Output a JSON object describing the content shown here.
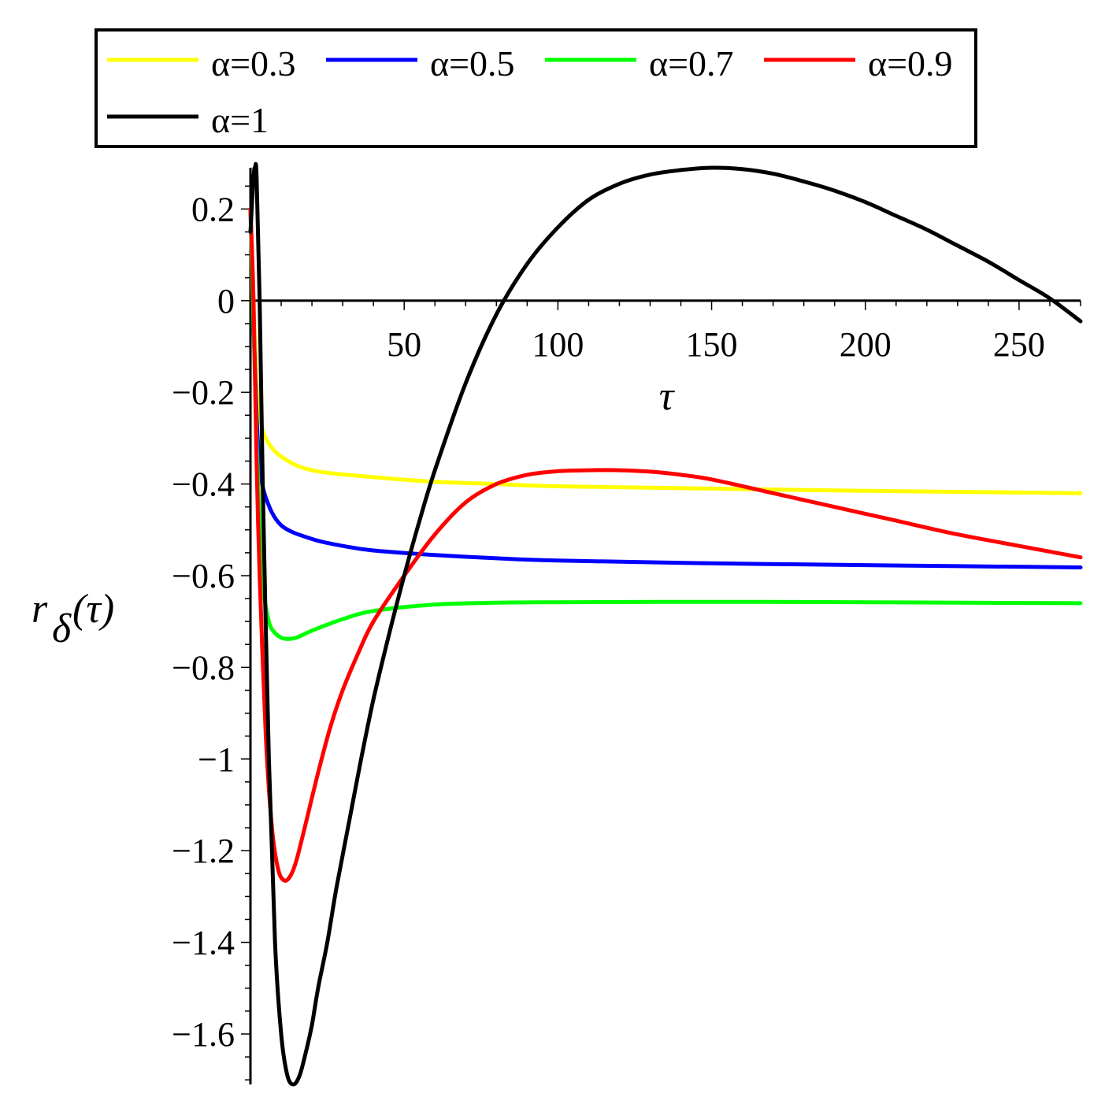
{
  "chart_data": {
    "type": "line",
    "xlabel": "τ",
    "ylabel": "r_δ(τ)",
    "ylabel_parts": {
      "main": "r",
      "sub": "δ",
      "arg": "(τ)"
    },
    "xlim": [
      0,
      270
    ],
    "ylim": [
      -1.71,
      0.29
    ],
    "x_ticks": [
      50,
      100,
      150,
      200,
      250
    ],
    "x_tick_labels": [
      "50",
      "100",
      "150",
      "200",
      "250"
    ],
    "y_ticks": [
      0.2,
      0,
      -0.2,
      -0.4,
      -0.6,
      -0.8,
      -1,
      -1.2,
      -1.4,
      -1.6
    ],
    "y_tick_labels": [
      "0.2",
      "0",
      "−0.2",
      "−0.4",
      "−0.6",
      "−0.8",
      "−1",
      "−1.2",
      "−1.4",
      "−1.6"
    ],
    "grid": false,
    "legend_placement": "top, above plot, boxed",
    "series": [
      {
        "name": "α=0.3",
        "color": "#ffff00",
        "x": [
          0,
          1,
          2,
          3,
          5,
          10,
          20,
          40,
          60,
          80,
          100,
          150,
          200,
          270
        ],
        "y": [
          0.2,
          0.0,
          -0.18,
          -0.25,
          -0.3,
          -0.34,
          -0.37,
          -0.385,
          -0.395,
          -0.4,
          -0.405,
          -0.41,
          -0.415,
          -0.42
        ]
      },
      {
        "name": "α=0.5",
        "color": "#0000ff",
        "x": [
          0,
          1,
          2,
          3,
          5,
          10,
          20,
          30,
          40,
          60,
          80,
          100,
          150,
          200,
          270
        ],
        "y": [
          0.2,
          -0.05,
          -0.25,
          -0.36,
          -0.43,
          -0.49,
          -0.52,
          -0.535,
          -0.545,
          -0.555,
          -0.562,
          -0.567,
          -0.573,
          -0.577,
          -0.582
        ]
      },
      {
        "name": "α=0.7",
        "color": "#00ff00",
        "x": [
          0,
          1,
          2,
          3,
          4,
          6,
          8,
          10,
          12,
          15,
          20,
          30,
          40,
          60,
          80,
          100,
          150,
          200,
          270
        ],
        "y": [
          0.2,
          -0.05,
          -0.3,
          -0.5,
          -0.62,
          -0.7,
          -0.725,
          -0.735,
          -0.738,
          -0.735,
          -0.72,
          -0.695,
          -0.677,
          -0.663,
          -0.659,
          -0.658,
          -0.657,
          -0.658,
          -0.66
        ]
      },
      {
        "name": "α=0.9",
        "color": "#ff0000",
        "x": [
          0,
          1,
          2,
          3,
          5,
          7,
          9,
          11,
          13,
          15,
          18,
          22,
          26,
          30,
          35,
          40,
          50,
          60,
          70,
          80,
          90,
          100,
          110,
          120,
          130,
          140,
          150,
          170,
          190,
          210,
          230,
          250,
          270
        ],
        "y": [
          0.2,
          0.0,
          -0.35,
          -0.6,
          -0.95,
          -1.15,
          -1.24,
          -1.265,
          -1.255,
          -1.22,
          -1.14,
          -1.03,
          -0.93,
          -0.85,
          -0.77,
          -0.7,
          -0.6,
          -0.51,
          -0.44,
          -0.4,
          -0.38,
          -0.372,
          -0.37,
          -0.37,
          -0.373,
          -0.38,
          -0.39,
          -0.42,
          -0.45,
          -0.48,
          -0.51,
          -0.535,
          -0.56
        ]
      },
      {
        "name": "α=1",
        "color": "#000000",
        "x": [
          0,
          1,
          1.5,
          2,
          3,
          4,
          6,
          8,
          10,
          12,
          14,
          16,
          18,
          20,
          22,
          25,
          28,
          32,
          36,
          40,
          45,
          50,
          55,
          60,
          70,
          80,
          90,
          100,
          110,
          120,
          130,
          140,
          150,
          160,
          170,
          180,
          190,
          200,
          210,
          220,
          230,
          240,
          250,
          260,
          270
        ],
        "y": [
          0.15,
          0.27,
          0.29,
          0.27,
          0.0,
          -0.4,
          -1.0,
          -1.4,
          -1.6,
          -1.69,
          -1.71,
          -1.69,
          -1.64,
          -1.58,
          -1.5,
          -1.4,
          -1.28,
          -1.14,
          -1.0,
          -0.87,
          -0.73,
          -0.6,
          -0.48,
          -0.37,
          -0.18,
          -0.03,
          0.08,
          0.16,
          0.22,
          0.255,
          0.275,
          0.285,
          0.29,
          0.287,
          0.277,
          0.26,
          0.24,
          0.215,
          0.185,
          0.155,
          0.12,
          0.085,
          0.045,
          0.005,
          -0.045
        ]
      }
    ]
  }
}
